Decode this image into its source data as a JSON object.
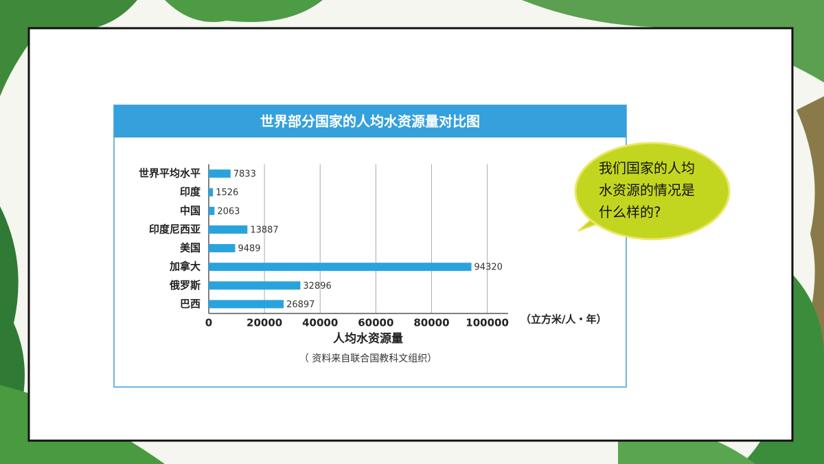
{
  "chart_data": {
    "type": "hbar",
    "title": "世界部分国家的人均水资源量对比图",
    "categories": [
      "世界平均水平",
      "印度",
      "中国",
      "印度尼西亚",
      "美国",
      "加拿大",
      "俄罗斯",
      "巴西"
    ],
    "values": [
      7833,
      1526,
      2063,
      13887,
      9489,
      94320,
      32896,
      26897
    ],
    "color": "#29a3dc",
    "xlim": [
      0,
      107500
    ],
    "xticks": [
      0,
      20000,
      40000,
      60000,
      80000,
      100000
    ],
    "grid": true,
    "x_label": "人均水资源量",
    "unit": "（立方米/人・年）",
    "source": "（ 资料来自联合国教科文组织）"
  },
  "callout": {
    "lines": [
      "我们国家的人均",
      "水资源的情况是",
      "什么样的?"
    ]
  }
}
